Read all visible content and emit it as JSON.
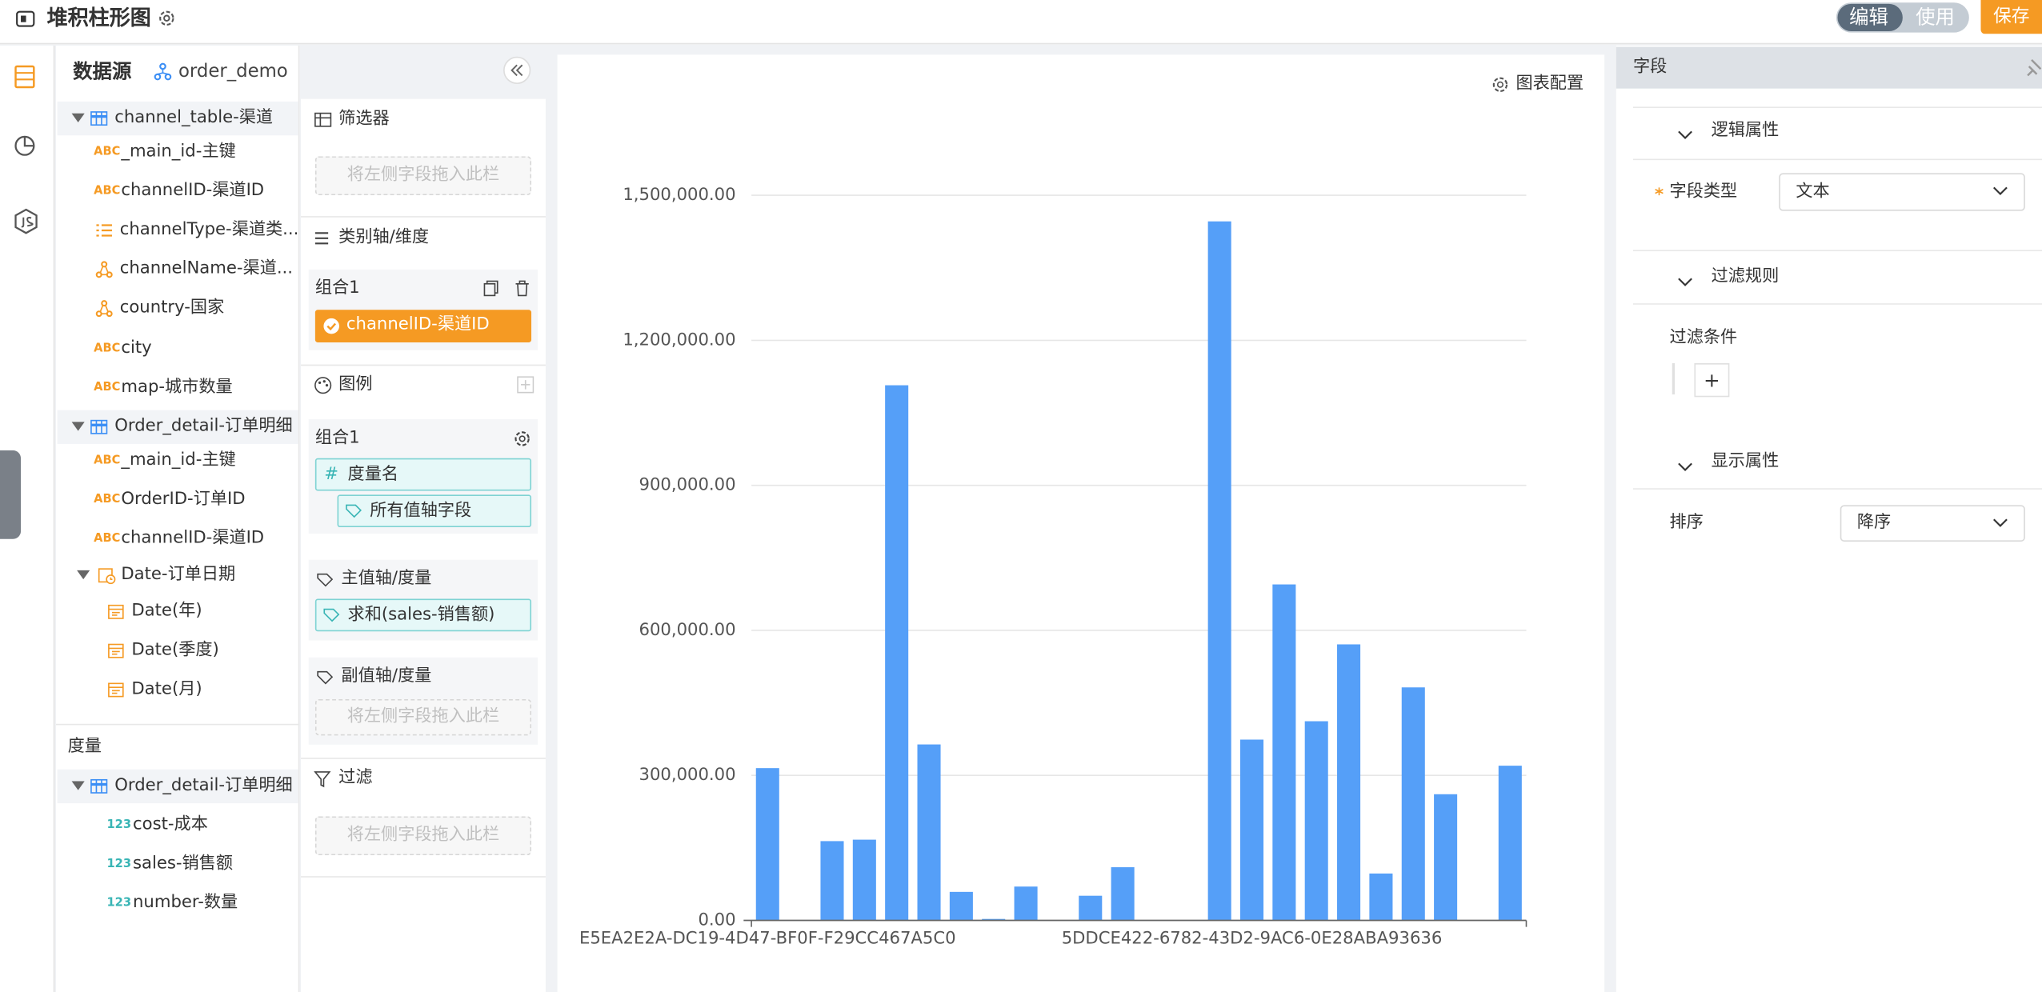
{
  "header": {
    "title": "堆积柱形图",
    "modes": [
      "编辑",
      "使用"
    ],
    "save": "保存"
  },
  "datasource": {
    "title": "数据源",
    "dataset": "order_demo",
    "dimensions": [
      {
        "label": "channel_table-渠道"
      },
      {
        "badge": "ABC",
        "label": "_main_id-主键"
      },
      {
        "badge": "ABC",
        "label": "channelID-渠道ID"
      },
      {
        "label": "channelType-渠道类..."
      },
      {
        "label": "channelName-渠道..."
      },
      {
        "label": "country-国家"
      },
      {
        "badge": "ABC",
        "label": "city"
      },
      {
        "badge": "ABC",
        "label": "map-城市数量"
      },
      {
        "label": "Order_detail-订单明细"
      },
      {
        "badge": "ABC",
        "label": "_main_id-主键"
      },
      {
        "badge": "ABC",
        "label": "OrderID-订单ID"
      },
      {
        "badge": "ABC",
        "label": "channelID-渠道ID"
      },
      {
        "label": "Date-订单日期"
      },
      {
        "label": "Date(年)"
      },
      {
        "label": "Date(季度)"
      },
      {
        "label": "Date(月)"
      }
    ],
    "measures_title": "度量",
    "measures": [
      {
        "label": "Order_detail-订单明细"
      },
      {
        "badge": "123",
        "label": "cost-成本"
      },
      {
        "badge": "123",
        "label": "sales-销售额"
      },
      {
        "badge": "123",
        "label": "number-数量"
      }
    ]
  },
  "config": {
    "filter": {
      "title": "筛选器",
      "placeholder": "将左侧字段拖入此栏"
    },
    "category": {
      "title": "类别轴/维度",
      "group": "组合1",
      "field": "channelID-渠道ID"
    },
    "legend": {
      "title": "图例",
      "group": "组合1",
      "field_icon": "#",
      "field": "度量名",
      "sub": "所有值轴字段"
    },
    "primary": {
      "title": "主值轴/度量",
      "field": "求和(sales-销售额)"
    },
    "secondary": {
      "title": "副值轴/度量",
      "placeholder": "将左侧字段拖入此栏"
    },
    "filter2": {
      "title": "过滤",
      "placeholder": "将左侧字段拖入此栏"
    }
  },
  "chart_config": "图表配置",
  "chart_data": {
    "type": "bar",
    "color": "#559ff8",
    "categories": [
      "E5EA2E2A-DC19-4D47-BF0F-F29CC467A5C0",
      null,
      null,
      null,
      null,
      null,
      null,
      null,
      null,
      null,
      null,
      null,
      null,
      null,
      null,
      "5DDCE422-6782-43D2-9AC6-0E28ABA93636",
      null,
      null,
      null,
      null,
      null,
      null,
      null,
      null
    ],
    "values": [
      315000,
      0,
      164000,
      167000,
      1107000,
      364000,
      59000,
      3000,
      70000,
      0,
      51000,
      110000,
      0,
      0,
      1446000,
      374000,
      695000,
      412000,
      571000,
      97000,
      482000,
      261000,
      0,
      320000
    ],
    "ylim": [
      0,
      1500000
    ],
    "yticks": [
      {
        "value": 0,
        "label": "0.00"
      },
      {
        "value": 300000,
        "label": "300,000.00"
      },
      {
        "value": 600000,
        "label": "600,000.00"
      },
      {
        "value": 900000,
        "label": "900,000.00"
      },
      {
        "value": 1200000,
        "label": "1,200,000.00"
      },
      {
        "value": 1500000,
        "label": "1,500,000.00"
      }
    ],
    "grid": true
  },
  "properties": {
    "title": "字段",
    "logic": "逻辑属性",
    "field_type_label": "字段类型",
    "field_type": "文本",
    "filter_rules": "过滤规则",
    "filter_condition": "过滤条件",
    "add": "+",
    "display": "显示属性",
    "sort_label": "排序",
    "sort": "降序"
  }
}
